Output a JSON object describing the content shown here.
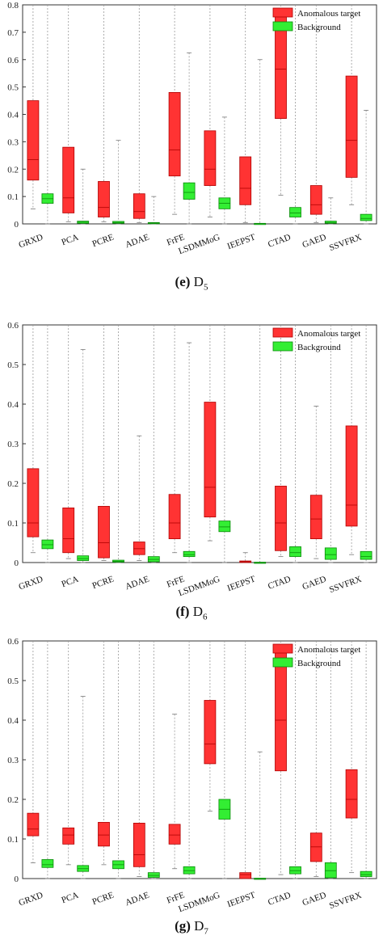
{
  "colors": {
    "target": "#ff3333",
    "background": "#33ee33",
    "target_stroke": "#b00000",
    "background_stroke": "#0a8a0a"
  },
  "chart_data": [
    {
      "type": "box",
      "caption_letter": "(e)",
      "caption_dataset": "D",
      "caption_sub": "5",
      "ylim": [
        0,
        0.8
      ],
      "yticks": [
        "0",
        "0.1",
        "0.2",
        "0.3",
        "0.4",
        "0.5",
        "0.6",
        "0.7",
        "0.8"
      ],
      "categories": [
        "GRXD",
        "PCA",
        "PCRE",
        "ADAE",
        "FrFE",
        "LSDMMoG",
        "IEEPST",
        "CTAD",
        "GAED",
        "SSVFRX"
      ],
      "legend": [
        "Anomalous target",
        "Background"
      ],
      "series": [
        {
          "name": "Anomalous target",
          "boxes": [
            {
              "lo": 0.055,
              "q1": 0.16,
              "med": 0.235,
              "q3": 0.45,
              "hi": 0.8
            },
            {
              "lo": 0.008,
              "q1": 0.04,
              "med": 0.095,
              "q3": 0.28,
              "hi": 0.8
            },
            {
              "lo": 0.008,
              "q1": 0.025,
              "med": 0.06,
              "q3": 0.155,
              "hi": 0.8
            },
            {
              "lo": 0.005,
              "q1": 0.02,
              "med": 0.045,
              "q3": 0.11,
              "hi": 0.8
            },
            {
              "lo": 0.035,
              "q1": 0.175,
              "med": 0.27,
              "q3": 0.48,
              "hi": 0.8
            },
            {
              "lo": 0.025,
              "q1": 0.14,
              "med": 0.2,
              "q3": 0.34,
              "hi": 0.8
            },
            {
              "lo": 0.005,
              "q1": 0.07,
              "med": 0.13,
              "q3": 0.245,
              "hi": 0.8
            },
            {
              "lo": 0.105,
              "q1": 0.385,
              "med": 0.565,
              "q3": 0.775,
              "hi": 0.8
            },
            {
              "lo": 0.005,
              "q1": 0.035,
              "med": 0.07,
              "q3": 0.14,
              "hi": 0.8
            },
            {
              "lo": 0.07,
              "q1": 0.17,
              "med": 0.305,
              "q3": 0.54,
              "hi": 0.8
            }
          ]
        },
        {
          "name": "Background",
          "boxes": [
            {
              "lo": 0,
              "q1": 0.075,
              "med": 0.092,
              "q3": 0.11,
              "hi": 0.8
            },
            {
              "lo": 0,
              "q1": 0.002,
              "med": 0.006,
              "q3": 0.01,
              "hi": 0.2
            },
            {
              "lo": 0,
              "q1": 0.002,
              "med": 0.005,
              "q3": 0.009,
              "hi": 0.305
            },
            {
              "lo": 0,
              "q1": 0.001,
              "med": 0.003,
              "q3": 0.005,
              "hi": 0.1
            },
            {
              "lo": 0,
              "q1": 0.09,
              "med": 0.115,
              "q3": 0.15,
              "hi": 0.625
            },
            {
              "lo": 0,
              "q1": 0.055,
              "med": 0.075,
              "q3": 0.095,
              "hi": 0.39
            },
            {
              "lo": 0,
              "q1": 0.0,
              "med": 0.001,
              "q3": 0.002,
              "hi": 0.6
            },
            {
              "lo": 0,
              "q1": 0.025,
              "med": 0.04,
              "q3": 0.06,
              "hi": 0.8
            },
            {
              "lo": 0,
              "q1": 0.002,
              "med": 0.005,
              "q3": 0.01,
              "hi": 0.095
            },
            {
              "lo": 0,
              "q1": 0.012,
              "med": 0.02,
              "q3": 0.035,
              "hi": 0.415
            }
          ]
        }
      ]
    },
    {
      "type": "box",
      "caption_letter": "(f)",
      "caption_dataset": "D",
      "caption_sub": "6",
      "ylim": [
        0,
        0.6
      ],
      "yticks": [
        "0",
        "0.1",
        "0.2",
        "0.3",
        "0.4",
        "0.5",
        "0.6"
      ],
      "categories": [
        "GRXD",
        "PCA",
        "PCRE",
        "ADAE",
        "FrFE",
        "LSDMMoG",
        "IEEPST",
        "CTAD",
        "GAED",
        "SSVFRX"
      ],
      "legend": [
        "Anomalous target",
        "Background"
      ],
      "series": [
        {
          "name": "Anomalous target",
          "boxes": [
            {
              "lo": 0.025,
              "q1": 0.065,
              "med": 0.1,
              "q3": 0.237,
              "hi": 0.6
            },
            {
              "lo": 0.01,
              "q1": 0.025,
              "med": 0.06,
              "q3": 0.138,
              "hi": 0.6
            },
            {
              "lo": 0.005,
              "q1": 0.012,
              "med": 0.05,
              "q3": 0.142,
              "hi": 0.6
            },
            {
              "lo": 0.005,
              "q1": 0.02,
              "med": 0.035,
              "q3": 0.052,
              "hi": 0.32
            },
            {
              "lo": 0.025,
              "q1": 0.06,
              "med": 0.1,
              "q3": 0.172,
              "hi": 0.6
            },
            {
              "lo": 0.055,
              "q1": 0.115,
              "med": 0.19,
              "q3": 0.405,
              "hi": 0.6
            },
            {
              "lo": 0.0,
              "q1": 0.0,
              "med": 0.002,
              "q3": 0.004,
              "hi": 0.025
            },
            {
              "lo": 0.015,
              "q1": 0.03,
              "med": 0.1,
              "q3": 0.193,
              "hi": 0.6
            },
            {
              "lo": 0.01,
              "q1": 0.06,
              "med": 0.11,
              "q3": 0.17,
              "hi": 0.395
            },
            {
              "lo": 0.02,
              "q1": 0.092,
              "med": 0.145,
              "q3": 0.345,
              "hi": 0.6
            }
          ]
        },
        {
          "name": "Background",
          "boxes": [
            {
              "lo": 0,
              "q1": 0.035,
              "med": 0.045,
              "q3": 0.057,
              "hi": 0.6
            },
            {
              "lo": 0,
              "q1": 0.005,
              "med": 0.01,
              "q3": 0.017,
              "hi": 0.538
            },
            {
              "lo": 0,
              "q1": 0.001,
              "med": 0.003,
              "q3": 0.006,
              "hi": 0.6
            },
            {
              "lo": 0,
              "q1": 0.002,
              "med": 0.008,
              "q3": 0.015,
              "hi": 0.6
            },
            {
              "lo": 0,
              "q1": 0.015,
              "med": 0.02,
              "q3": 0.028,
              "hi": 0.555
            },
            {
              "lo": 0,
              "q1": 0.078,
              "med": 0.09,
              "q3": 0.105,
              "hi": 0.6
            },
            {
              "lo": 0,
              "q1": 0.0,
              "med": 0.0,
              "q3": 0.001,
              "hi": 0.6
            },
            {
              "lo": 0,
              "q1": 0.015,
              "med": 0.025,
              "q3": 0.04,
              "hi": 0.6
            },
            {
              "lo": 0,
              "q1": 0.008,
              "med": 0.02,
              "q3": 0.037,
              "hi": 0.6
            },
            {
              "lo": 0,
              "q1": 0.008,
              "med": 0.015,
              "q3": 0.028,
              "hi": 0.6
            }
          ]
        }
      ]
    },
    {
      "type": "box",
      "caption_letter": "(g)",
      "caption_dataset": "D",
      "caption_sub": "7",
      "ylim": [
        0,
        0.6
      ],
      "yticks": [
        "0",
        "0.1",
        "0.2",
        "0.3",
        "0.4",
        "0.5",
        "0.6"
      ],
      "categories": [
        "GRXD",
        "PCA",
        "PCRE",
        "ADAE",
        "FrFE",
        "LSDMMoG",
        "IEEPST",
        "CTAD",
        "GAED",
        "SSVFRX"
      ],
      "legend": [
        "Anomalous target",
        "Background"
      ],
      "series": [
        {
          "name": "Anomalous target",
          "boxes": [
            {
              "lo": 0.04,
              "q1": 0.108,
              "med": 0.125,
              "q3": 0.165,
              "hi": 0.6
            },
            {
              "lo": 0.035,
              "q1": 0.087,
              "med": 0.11,
              "q3": 0.128,
              "hi": 0.6
            },
            {
              "lo": 0.035,
              "q1": 0.082,
              "med": 0.11,
              "q3": 0.142,
              "hi": 0.6
            },
            {
              "lo": 0.005,
              "q1": 0.03,
              "med": 0.06,
              "q3": 0.14,
              "hi": 0.6
            },
            {
              "lo": 0.025,
              "q1": 0.087,
              "med": 0.11,
              "q3": 0.137,
              "hi": 0.415
            },
            {
              "lo": 0.17,
              "q1": 0.29,
              "med": 0.34,
              "q3": 0.45,
              "hi": 0.6
            },
            {
              "lo": 0.0,
              "q1": 0.0,
              "med": 0.01,
              "q3": 0.015,
              "hi": 0.6
            },
            {
              "lo": 0.01,
              "q1": 0.272,
              "med": 0.4,
              "q3": 0.572,
              "hi": 0.6
            },
            {
              "lo": 0.005,
              "q1": 0.043,
              "med": 0.08,
              "q3": 0.115,
              "hi": 0.6
            },
            {
              "lo": 0.015,
              "q1": 0.153,
              "med": 0.2,
              "q3": 0.275,
              "hi": 0.6
            }
          ]
        },
        {
          "name": "Background",
          "boxes": [
            {
              "lo": 0,
              "q1": 0.028,
              "med": 0.035,
              "q3": 0.048,
              "hi": 0.6
            },
            {
              "lo": 0,
              "q1": 0.018,
              "med": 0.025,
              "q3": 0.033,
              "hi": 0.46
            },
            {
              "lo": 0,
              "q1": 0.025,
              "med": 0.035,
              "q3": 0.045,
              "hi": 0.6
            },
            {
              "lo": 0,
              "q1": 0.003,
              "med": 0.008,
              "q3": 0.015,
              "hi": 0.6
            },
            {
              "lo": 0,
              "q1": 0.012,
              "med": 0.02,
              "q3": 0.03,
              "hi": 0.6
            },
            {
              "lo": 0,
              "q1": 0.15,
              "med": 0.175,
              "q3": 0.2,
              "hi": 0.6
            },
            {
              "lo": 0,
              "q1": 0.0,
              "med": 0.0,
              "q3": 0.001,
              "hi": 0.32
            },
            {
              "lo": 0,
              "q1": 0.012,
              "med": 0.02,
              "q3": 0.03,
              "hi": 0.6
            },
            {
              "lo": 0,
              "q1": 0.002,
              "med": 0.02,
              "q3": 0.04,
              "hi": 0.6
            },
            {
              "lo": 0,
              "q1": 0.005,
              "med": 0.01,
              "q3": 0.018,
              "hi": 0.6
            }
          ]
        }
      ]
    }
  ]
}
